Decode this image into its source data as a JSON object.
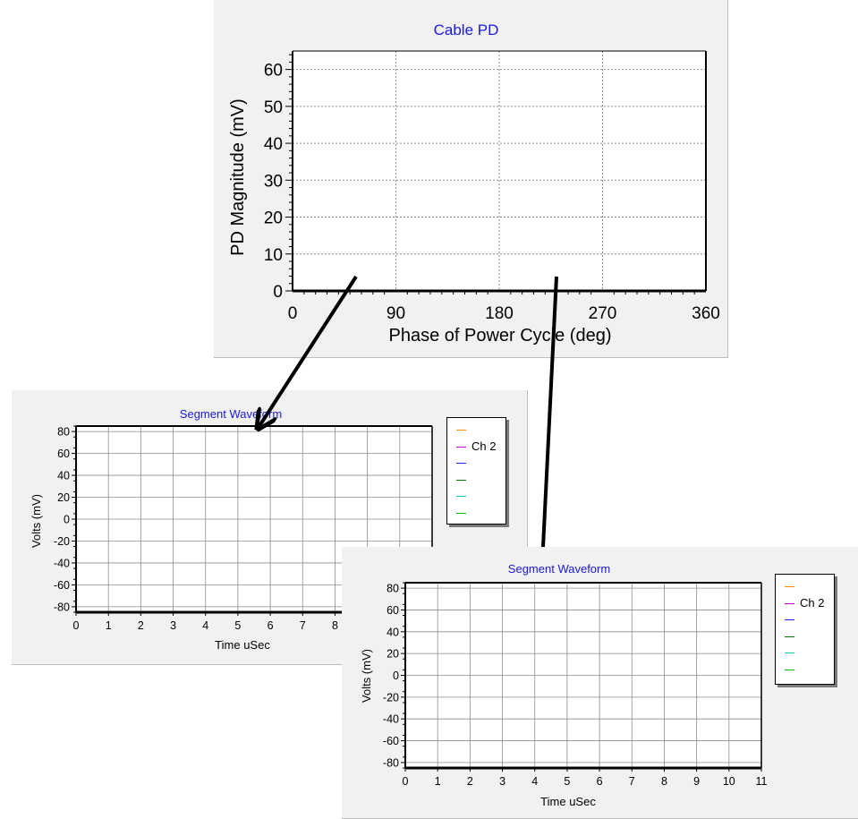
{
  "charts": [
    {
      "id": "cable-pd",
      "type": "scatter",
      "title": "Cable PD",
      "xlabel": "Phase of Power Cycle (deg)",
      "ylabel": "PD Magnitude (mV)",
      "x_ticks": [
        "0",
        "90",
        "180",
        "270",
        "360"
      ],
      "y_ticks": [
        "0",
        "10",
        "20",
        "30",
        "40",
        "50",
        "60"
      ],
      "xlim": [
        0,
        360
      ],
      "ylim": [
        0,
        65
      ],
      "series": [],
      "grid": true,
      "colors": {
        "title": "#1a1adc",
        "axis": "#000000",
        "grid": "#8c8c8c"
      }
    },
    {
      "id": "segment-waveform-left",
      "type": "line",
      "title": "Segment Waveform",
      "xlabel": "Time uSec",
      "ylabel": "Volts (mV)",
      "x_ticks": [
        "0",
        "1",
        "2",
        "3",
        "4",
        "5",
        "6",
        "7",
        "8"
      ],
      "y_ticks": [
        "80",
        "60",
        "40",
        "20",
        "0",
        "-20",
        "-40",
        "-60",
        "-80"
      ],
      "xlim": [
        0,
        11
      ],
      "ylim": [
        -85,
        85
      ],
      "legend": [
        "",
        "Ch 2",
        "",
        "",
        "",
        ""
      ],
      "legend_colors": [
        "#ff8c00",
        "#c800c8",
        "#1e1eff",
        "#007800",
        "#00c8c8",
        "#00c800"
      ],
      "grid": true,
      "colors": {
        "title": "#1a1adc",
        "axis": "#000000",
        "grid": "#8c8c8c"
      }
    },
    {
      "id": "segment-waveform-right",
      "type": "line",
      "title": "Segment Waveform",
      "xlabel": "Time uSec",
      "ylabel": "Volts (mV)",
      "x_ticks": [
        "0",
        "1",
        "2",
        "3",
        "4",
        "5",
        "6",
        "7",
        "8",
        "9",
        "10",
        "11"
      ],
      "y_ticks": [
        "80",
        "60",
        "40",
        "20",
        "0",
        "-20",
        "-40",
        "-60",
        "-80"
      ],
      "xlim": [
        0,
        11
      ],
      "ylim": [
        -85,
        85
      ],
      "legend": [
        "",
        "Ch 2",
        "",
        "",
        "",
        ""
      ],
      "legend_colors": [
        "#ff8c00",
        "#c800c8",
        "#1e1eff",
        "#007800",
        "#00c8c8",
        "#00c800"
      ],
      "grid": true,
      "colors": {
        "title": "#1a1adc",
        "axis": "#000000",
        "grid": "#8c8c8c"
      }
    }
  ],
  "chart_data": [
    {
      "type": "scatter",
      "title": "Cable PD",
      "xlabel": "Phase of Power Cycle (deg)",
      "ylabel": "PD Magnitude (mV)",
      "xlim": [
        0,
        360
      ],
      "ylim": [
        0,
        65
      ],
      "series": []
    },
    {
      "type": "line",
      "title": "Segment Waveform",
      "xlabel": "Time uSec",
      "ylabel": "Volts (mV)",
      "xlim": [
        0,
        11
      ],
      "ylim": [
        -85,
        85
      ],
      "legend": [
        "Ch 2"
      ],
      "series": []
    },
    {
      "type": "line",
      "title": "Segment Waveform",
      "xlabel": "Time uSec",
      "ylabel": "Volts (mV)",
      "xlim": [
        0,
        11
      ],
      "ylim": [
        -85,
        85
      ],
      "legend": [
        "Ch 2"
      ],
      "series": []
    }
  ]
}
